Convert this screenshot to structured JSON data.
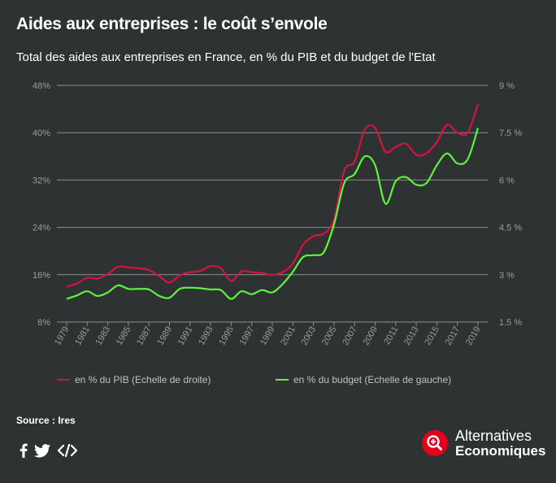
{
  "header": {
    "title": "Aides aux entreprises : le coût s’envole",
    "subtitle": "Total des aides aux entreprises en France, en % du PIB et du budget de l'Etat"
  },
  "chart_data": {
    "type": "line",
    "x": [
      1979,
      1980,
      1981,
      1982,
      1983,
      1984,
      1985,
      1986,
      1987,
      1988,
      1989,
      1990,
      1991,
      1992,
      1993,
      1994,
      1995,
      1996,
      1997,
      1998,
      1999,
      2000,
      2001,
      2002,
      2003,
      2004,
      2005,
      2006,
      2007,
      2008,
      2009,
      2010,
      2011,
      2012,
      2013,
      2014,
      2015,
      2016,
      2017,
      2018,
      2019
    ],
    "x_ticks": [
      "1979",
      "1981",
      "1983",
      "1985",
      "1987",
      "1989",
      "1991",
      "1993",
      "1995",
      "1997",
      "1999",
      "2001",
      "2003",
      "2005",
      "2007",
      "2009",
      "2011",
      "2013",
      "2015",
      "2017",
      "2019"
    ],
    "y_left": {
      "min": 8,
      "max": 48,
      "ticks": [
        "8%",
        "16%",
        "24%",
        "32%",
        "40%",
        "48%"
      ],
      "tick_values": [
        8,
        16,
        24,
        32,
        40,
        48
      ]
    },
    "y_right": {
      "min": 1.5,
      "max": 9,
      "ticks": [
        "1.5 %",
        "3 %",
        "4.5 %",
        "6 %",
        "7.5 %",
        "9 %"
      ],
      "tick_values": [
        1.5,
        3,
        4.5,
        6,
        7.5,
        9
      ]
    },
    "grid": true,
    "legend_position": "bottom",
    "series": [
      {
        "name": "en % du PIB (Echelle de droite)",
        "axis": "right",
        "color": "#d8123f",
        "values": [
          2.62,
          2.72,
          2.9,
          2.88,
          3.02,
          3.25,
          3.23,
          3.2,
          3.15,
          2.95,
          2.75,
          2.98,
          3.08,
          3.12,
          3.27,
          3.2,
          2.8,
          3.1,
          3.08,
          3.05,
          3.0,
          3.08,
          3.35,
          3.95,
          4.22,
          4.3,
          4.75,
          6.3,
          6.58,
          7.6,
          7.65,
          6.9,
          7.05,
          7.15,
          6.8,
          6.85,
          7.2,
          7.75,
          7.5,
          7.5,
          8.4
        ]
      },
      {
        "name": "en % du budget (Echelle de gauche)",
        "axis": "left",
        "color": "#5df53c",
        "values": [
          11.9,
          12.5,
          13.2,
          12.4,
          13.0,
          14.2,
          13.6,
          13.6,
          13.5,
          12.4,
          12.1,
          13.6,
          13.8,
          13.7,
          13.5,
          13.4,
          11.9,
          13.2,
          12.7,
          13.4,
          13.0,
          14.4,
          16.5,
          19.0,
          19.3,
          19.8,
          24.5,
          31.5,
          33.0,
          36.0,
          34.5,
          28.0,
          31.8,
          32.5,
          31.2,
          31.5,
          34.5,
          36.5,
          34.8,
          35.5,
          40.8
        ]
      }
    ]
  },
  "legend": {
    "pib_label": "en % du PIB (Echelle de droite)",
    "budget_label": "en % du budget (Echelle de gauche)"
  },
  "footer": {
    "source": "Source : Ires",
    "logo_line1": "Alternatives",
    "logo_line2": "Economiques",
    "icons": [
      "facebook-icon",
      "twitter-icon",
      "embed-code-icon"
    ]
  },
  "colors": {
    "background": "#2f3233",
    "pib": "#d8123f",
    "budget": "#5df53c",
    "grid": "#8c8f90",
    "logo_red": "#e3001b"
  }
}
